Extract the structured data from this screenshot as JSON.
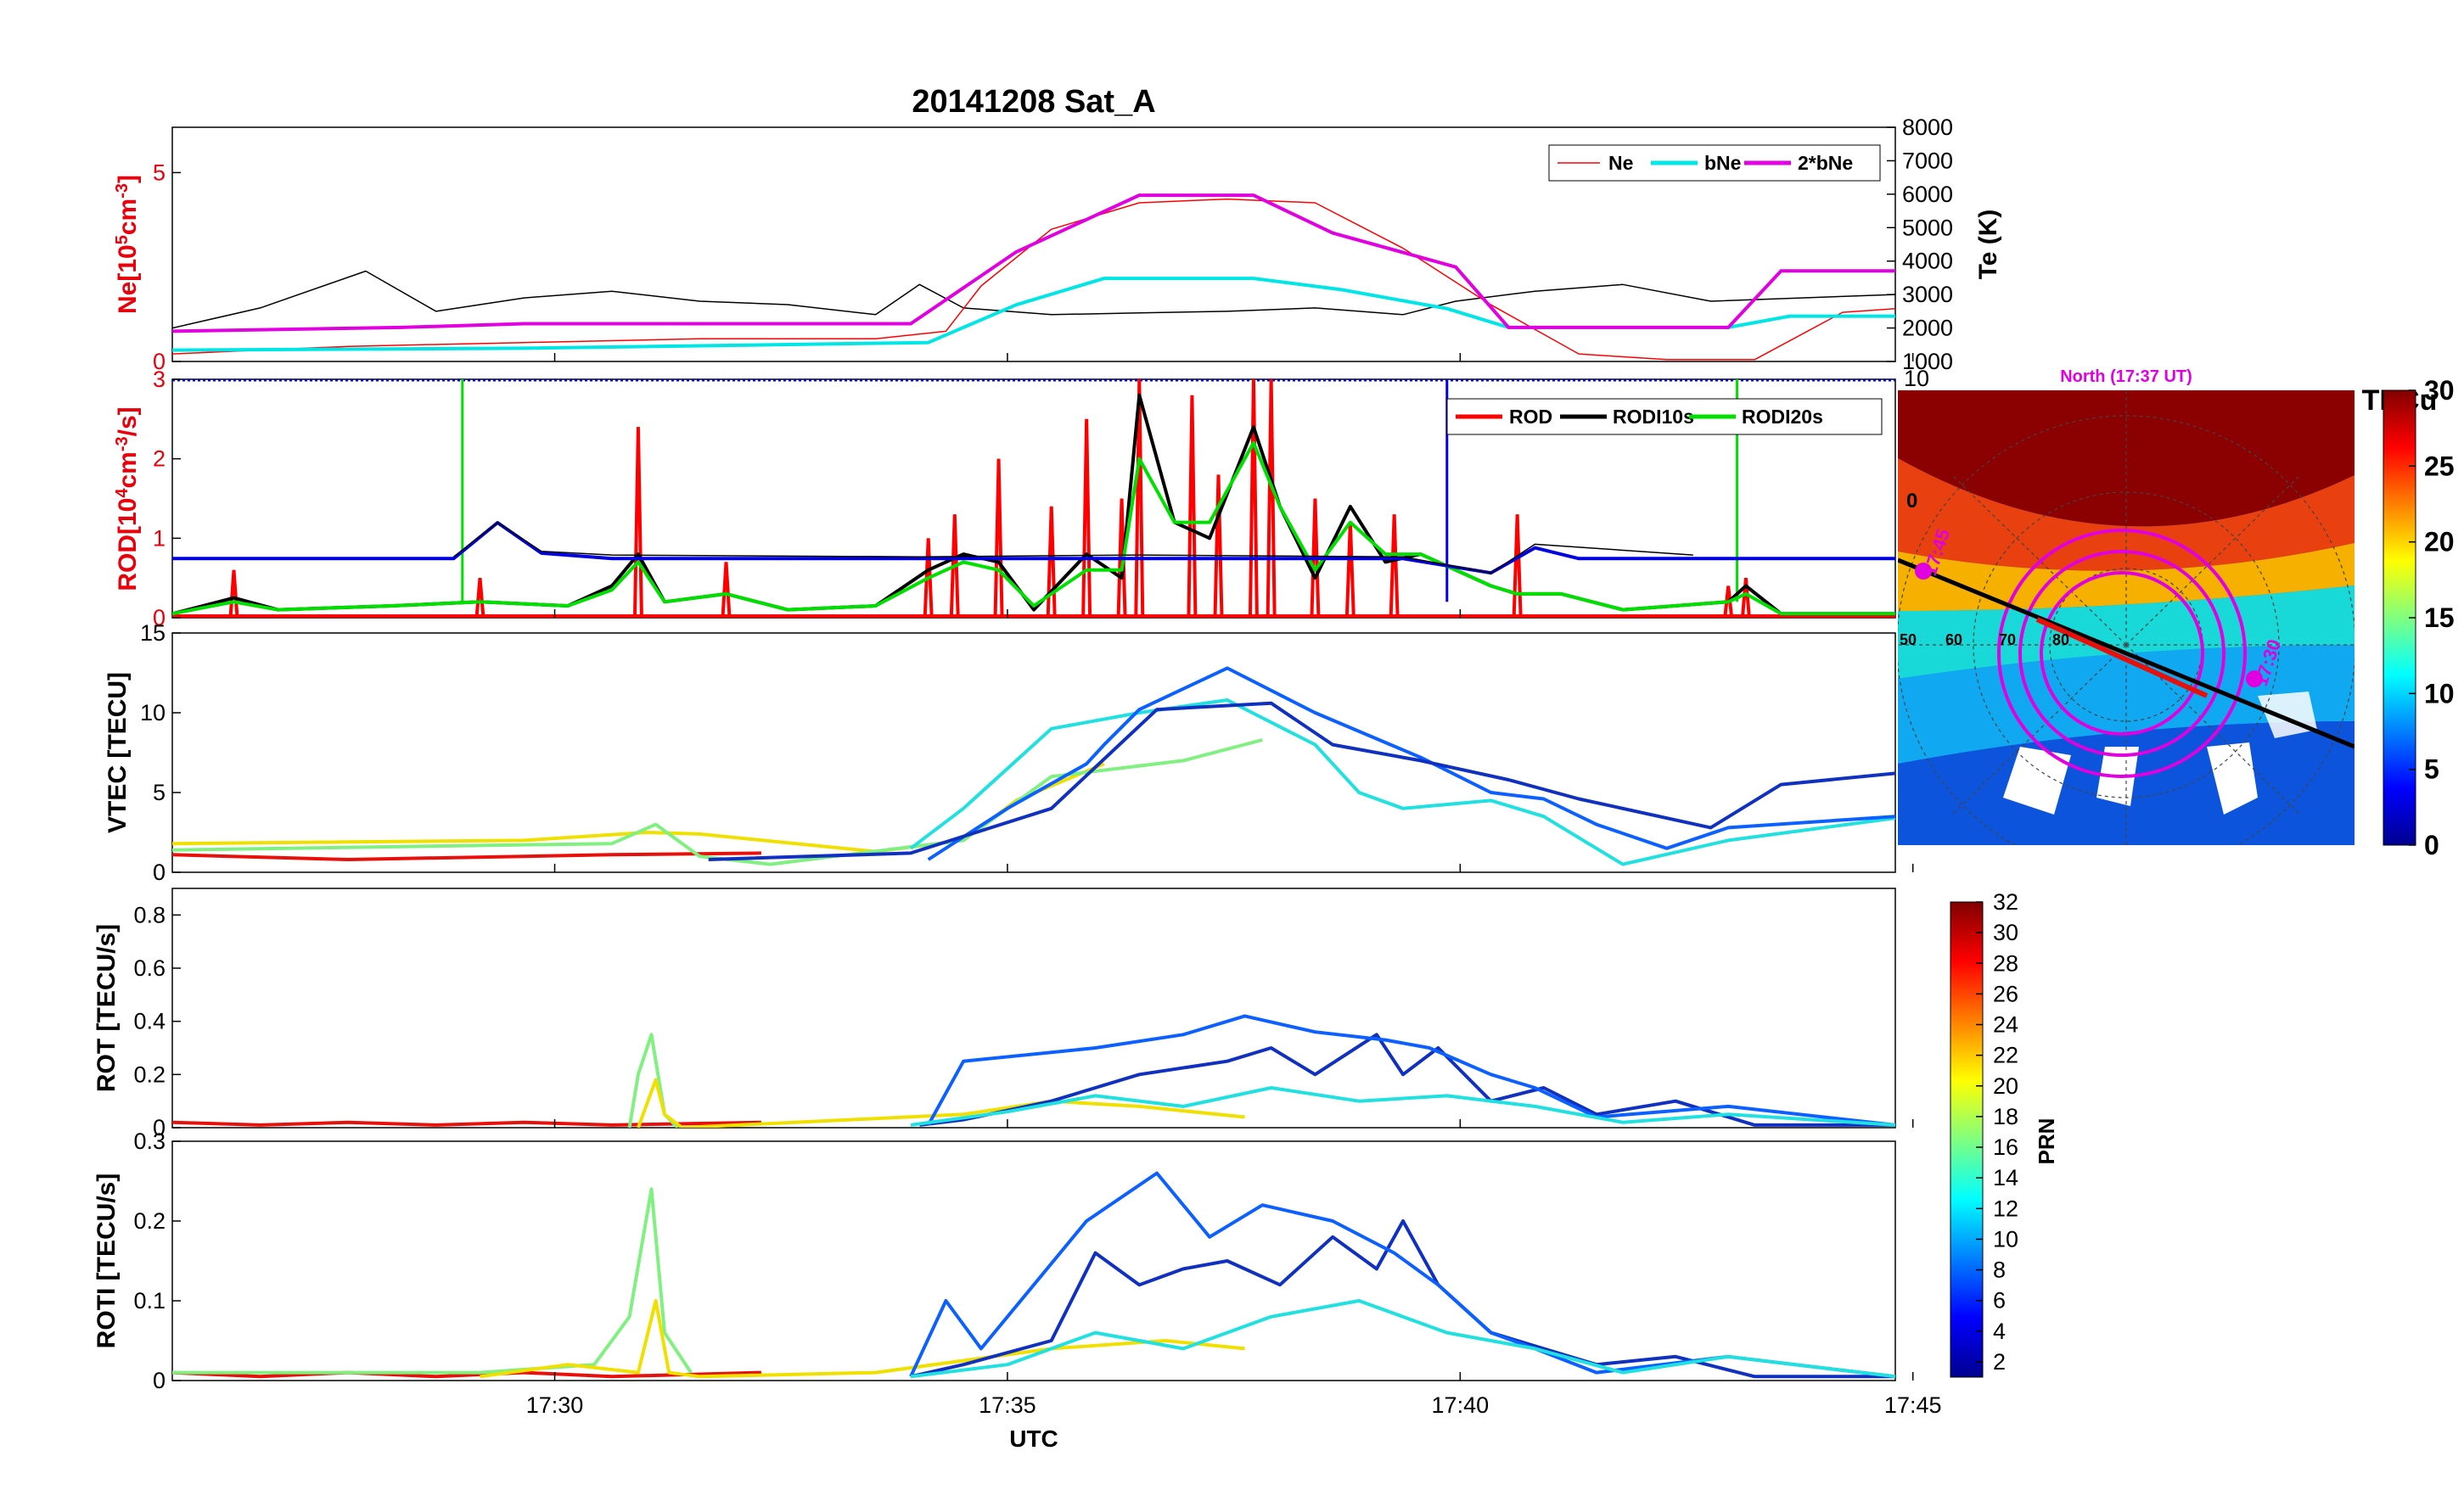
{
  "figure": {
    "title": "20141208  Sat_A",
    "xlabel": "UTC",
    "x_ticks": [
      "17:30",
      "17:35",
      "17:40",
      "17:45"
    ]
  },
  "chart_data": [
    {
      "type": "line",
      "panel": "ne",
      "ylabel_left": "Ne[10^5cm^-3]",
      "ylabel_left_parts": [
        "Ne[10",
        "5",
        "cm",
        "-3",
        "]"
      ],
      "yticks_left": [
        "0",
        "5"
      ],
      "ylim_left": [
        0,
        6.2
      ],
      "ylabel_right": "Te (K)",
      "yticks_right": [
        "1000",
        "2000",
        "3000",
        "4000",
        "5000",
        "6000",
        "7000",
        "8000"
      ],
      "ylim_right": [
        1000,
        8000
      ],
      "x_range_minutes": [
        0,
        19.6
      ],
      "legend": [
        "Ne",
        "bNe",
        "2*bNe"
      ],
      "series": [
        {
          "name": "Te",
          "axis": "right",
          "color": "#000000",
          "x": [
            0,
            1,
            2.2,
            3,
            4,
            5,
            6,
            7,
            8,
            8.5,
            9,
            10,
            11,
            12,
            13,
            14,
            14.6,
            15.5,
            16.5,
            17.5,
            19.6
          ],
          "y": [
            2000,
            2600,
            3700,
            2500,
            2900,
            3100,
            2800,
            2700,
            2400,
            3300,
            2600,
            2400,
            2450,
            2500,
            2600,
            2400,
            2800,
            3100,
            3300,
            2800,
            3000
          ]
        },
        {
          "name": "Ne",
          "axis": "left",
          "color": "#ff0000",
          "x": [
            0,
            2,
            4,
            6,
            8,
            8.8,
            9.2,
            10,
            11,
            12,
            13,
            14,
            15,
            16,
            17,
            18,
            19,
            19.6
          ],
          "y": [
            0.2,
            0.4,
            0.5,
            0.6,
            0.6,
            0.8,
            2.0,
            3.5,
            4.2,
            4.3,
            4.2,
            3.0,
            1.5,
            0.2,
            0.05,
            0.05,
            1.3,
            1.4
          ]
        },
        {
          "name": "bNe",
          "axis": "left",
          "color": "#00e5e5",
          "x": [
            0,
            4,
            8.6,
            9.6,
            10.6,
            12.3,
            13.3,
            14.5,
            15.2,
            17.7,
            18.4,
            19.6
          ],
          "y": [
            0.3,
            0.35,
            0.5,
            1.5,
            2.2,
            2.2,
            1.9,
            1.4,
            0.9,
            0.9,
            1.2,
            1.2
          ]
        },
        {
          "name": "2*bNe",
          "axis": "left",
          "color": "#e000e0",
          "x": [
            0,
            2.6,
            4,
            8.4,
            9.6,
            11,
            12.3,
            13.2,
            14.6,
            15.2,
            17.7,
            18.3,
            19.6
          ],
          "y": [
            0.8,
            0.9,
            1.0,
            1.0,
            2.9,
            4.4,
            4.4,
            3.4,
            2.5,
            0.9,
            0.9,
            2.4,
            2.4
          ]
        }
      ]
    },
    {
      "type": "line",
      "panel": "rod",
      "ylabel": "ROD[10^4cm^-3/s]",
      "ylabel_parts": [
        "ROD[10",
        "4",
        "cm",
        "-3",
        "/s]"
      ],
      "yticks_left": [
        "0",
        "1",
        "2",
        "3"
      ],
      "ylim": [
        0,
        3
      ],
      "right_tick_labels": [
        "10",
        "0"
      ],
      "right_scale": [
        -3.3,
        10
      ],
      "legend": [
        "ROD",
        "RODI10s",
        "RODI20s"
      ],
      "series": [
        {
          "name": "ROD",
          "color": "#ff0000",
          "spikes_x": [
            0.7,
            3.5,
            5.3,
            6.3,
            8.6,
            8.9,
            9.4,
            10.0,
            10.4,
            10.8,
            11.0,
            11.6,
            11.9,
            12.3,
            12.5,
            13.0,
            13.4,
            13.9,
            15.3,
            17.7,
            17.9
          ],
          "spikes_y": [
            0.6,
            0.5,
            2.4,
            0.7,
            1.0,
            1.3,
            2.0,
            1.4,
            2.5,
            1.5,
            3.0,
            2.8,
            1.8,
            3.0,
            3.0,
            1.5,
            1.2,
            1.3,
            1.3,
            0.4,
            0.5
          ]
        },
        {
          "name": "RODI10s",
          "color": "#000000",
          "x": [
            0,
            0.7,
            1.2,
            2.5,
            3.5,
            4.5,
            5.0,
            5.3,
            5.6,
            6.3,
            7,
            8,
            8.6,
            9.0,
            9.4,
            9.8,
            10.4,
            10.8,
            11.0,
            11.4,
            11.8,
            12.3,
            12.6,
            13.0,
            13.4,
            13.8,
            14.2,
            15,
            15.3,
            15.8,
            16.5,
            17.7,
            17.9,
            18.3,
            19.6
          ],
          "y": [
            0.05,
            0.25,
            0.1,
            0.15,
            0.2,
            0.15,
            0.4,
            0.8,
            0.2,
            0.3,
            0.1,
            0.15,
            0.6,
            0.8,
            0.7,
            0.1,
            0.8,
            0.5,
            2.8,
            1.2,
            1.0,
            2.4,
            1.4,
            0.5,
            1.4,
            0.7,
            0.8,
            0.4,
            0.3,
            0.3,
            0.1,
            0.2,
            0.4,
            0.05,
            0.05
          ]
        },
        {
          "name": "RODI20s",
          "color": "#00e000",
          "x": [
            0,
            0.7,
            1.2,
            2.5,
            3.5,
            4.5,
            5.0,
            5.3,
            5.6,
            6.3,
            7,
            8,
            8.6,
            9.0,
            9.4,
            9.8,
            10.4,
            10.8,
            11.0,
            11.4,
            11.8,
            12.3,
            12.6,
            13.0,
            13.4,
            13.8,
            14.2,
            15,
            15.3,
            15.8,
            16.5,
            17.7,
            17.9,
            18.3,
            19.6
          ],
          "y": [
            0.05,
            0.2,
            0.1,
            0.15,
            0.2,
            0.15,
            0.35,
            0.7,
            0.2,
            0.3,
            0.1,
            0.15,
            0.5,
            0.7,
            0.6,
            0.15,
            0.6,
            0.6,
            2.0,
            1.2,
            1.2,
            2.2,
            1.4,
            0.6,
            1.2,
            0.8,
            0.8,
            0.4,
            0.3,
            0.3,
            0.1,
            0.2,
            0.3,
            0.05,
            0.05
          ]
        },
        {
          "name": "right-axis trace",
          "color": "#0000e0",
          "x": [
            0,
            3.2,
            3.7,
            4.2,
            5.0,
            8.5,
            11,
            14,
            15,
            15.5,
            16,
            19.6
          ],
          "y": [
            0,
            0,
            2.0,
            0.3,
            0,
            0,
            0,
            0,
            -0.8,
            0.6,
            0,
            0
          ]
        },
        {
          "name": "right-axis noise",
          "color": "#000000",
          "x": [
            3.2,
            3.7,
            4.2,
            5,
            8.5,
            11,
            14,
            15,
            15.5,
            17.3
          ],
          "y": [
            0.1,
            2.0,
            0.4,
            0.2,
            0.1,
            0.2,
            0.1,
            -0.8,
            0.8,
            0.2
          ]
        }
      ]
    },
    {
      "type": "line",
      "panel": "vtec",
      "ylabel": "VTEC [TECU]",
      "yticks_left": [
        "0",
        "5",
        "10",
        "15"
      ],
      "ylim": [
        0,
        15
      ],
      "series": [
        {
          "name": "PRN red",
          "color": "#e8100b",
          "x": [
            0,
            2,
            4,
            5,
            6.7
          ],
          "y": [
            1.1,
            0.8,
            1.0,
            1.1,
            1.2
          ]
        },
        {
          "name": "PRN yellow",
          "color": "#f0e000",
          "x": [
            0,
            2,
            4,
            5.4,
            6,
            8,
            9,
            9.6,
            10.6
          ],
          "y": [
            1.8,
            1.9,
            2.0,
            2.5,
            2.4,
            1.3,
            2.0,
            4.5,
            6.8
          ]
        },
        {
          "name": "PRN green",
          "color": "#80f080",
          "x": [
            0,
            5,
            5.5,
            6,
            6.8,
            9,
            10,
            11.5,
            12.4
          ],
          "y": [
            1.4,
            1.8,
            3.0,
            1.0,
            0.5,
            2.0,
            6.0,
            7.0,
            8.3
          ]
        },
        {
          "name": "PRN cyan",
          "color": "#20e0e0",
          "x": [
            8.4,
            9,
            10,
            11,
            12,
            13,
            13.5,
            14,
            15,
            15.6,
            16.5,
            17.7,
            19.6
          ],
          "y": [
            1.5,
            4.0,
            9.0,
            10.0,
            10.8,
            8.0,
            5.0,
            4.0,
            4.5,
            3.5,
            0.5,
            2.0,
            3.4
          ]
        },
        {
          "name": "PRN blue",
          "color": "#0b60ff",
          "x": [
            8.6,
            9.5,
            10.4,
            10.6,
            11,
            12,
            13,
            14.2,
            15,
            15.6,
            16.2,
            17,
            17.7,
            19.6
          ],
          "y": [
            0.8,
            4.0,
            6.8,
            8.0,
            10.2,
            12.8,
            10.0,
            7.2,
            5.0,
            4.6,
            3.0,
            1.5,
            2.8,
            3.5
          ]
        },
        {
          "name": "PRN navy",
          "color": "#1030c0",
          "x": [
            6.1,
            8.4,
            10,
            11.2,
            12.5,
            13.2,
            14.2,
            15.2,
            16,
            17.5,
            18.3,
            19.6
          ],
          "y": [
            0.8,
            1.2,
            4.0,
            10.2,
            10.6,
            8.0,
            7.0,
            5.8,
            4.6,
            2.8,
            5.5,
            6.2
          ]
        }
      ]
    },
    {
      "type": "line",
      "panel": "rot",
      "ylabel": "ROT [TECU/s]",
      "yticks_left": [
        "0",
        "0.2",
        "0.4",
        "0.6",
        "0.8"
      ],
      "ylim": [
        0,
        0.9
      ],
      "series": [
        {
          "name": "PRN red",
          "color": "#e8100b",
          "x": [
            0,
            1,
            2,
            3,
            4,
            5,
            6.7
          ],
          "y": [
            0.02,
            0.01,
            0.02,
            0.01,
            0.02,
            0.01,
            0.02
          ]
        },
        {
          "name": "PRN green",
          "color": "#80f080",
          "x": [
            5.2,
            5.3,
            5.45,
            5.6,
            5.75
          ],
          "y": [
            0.0,
            0.2,
            0.35,
            0.05,
            0.0
          ]
        },
        {
          "name": "PRN yellow",
          "color": "#f0e000",
          "x": [
            5.3,
            5.5,
            5.6,
            5.8,
            9,
            10,
            11,
            12.2
          ],
          "y": [
            0.0,
            0.18,
            0.05,
            0.0,
            0.05,
            0.1,
            0.08,
            0.04
          ]
        },
        {
          "name": "PRN navy",
          "color": "#1030c0",
          "x": [
            8.5,
            9,
            10,
            11,
            12,
            12.5,
            13,
            13.7,
            14,
            14.4,
            15,
            15.6,
            16.2,
            17.1,
            18,
            19.6
          ],
          "y": [
            0.01,
            0.03,
            0.1,
            0.2,
            0.25,
            0.3,
            0.2,
            0.35,
            0.2,
            0.3,
            0.1,
            0.15,
            0.05,
            0.1,
            0.01,
            0.01
          ]
        },
        {
          "name": "PRN blue",
          "color": "#0b60ff",
          "x": [
            8.6,
            9,
            10.5,
            11.5,
            12.2,
            13,
            13.8,
            14.3,
            15,
            15.5,
            16.2,
            17.7,
            19.6
          ],
          "y": [
            0.01,
            0.25,
            0.3,
            0.35,
            0.42,
            0.36,
            0.33,
            0.3,
            0.2,
            0.15,
            0.04,
            0.08,
            0.01
          ]
        },
        {
          "name": "PRN cyan",
          "color": "#20e0e0",
          "x": [
            8.4,
            9.5,
            10.5,
            11.5,
            12.5,
            13.5,
            14.5,
            15.5,
            16.5,
            17.7,
            19.6
          ],
          "y": [
            0.01,
            0.06,
            0.12,
            0.08,
            0.15,
            0.1,
            0.12,
            0.08,
            0.02,
            0.05,
            0.01
          ]
        }
      ]
    },
    {
      "type": "line",
      "panel": "roti",
      "ylabel": "ROTI [TECU/s]",
      "yticks_left": [
        "0",
        "0.1",
        "0.2",
        "0.3"
      ],
      "ylim": [
        0,
        0.3
      ],
      "series": [
        {
          "name": "PRN red",
          "color": "#e8100b",
          "x": [
            0,
            1,
            2,
            3,
            4,
            5,
            6.7
          ],
          "y": [
            0.01,
            0.005,
            0.01,
            0.005,
            0.01,
            0.005,
            0.01
          ]
        },
        {
          "name": "PRN green",
          "color": "#80f080",
          "x": [
            0,
            3.5,
            4.8,
            5.2,
            5.45,
            5.6,
            5.9
          ],
          "y": [
            0.01,
            0.01,
            0.02,
            0.08,
            0.24,
            0.06,
            0.01
          ]
        },
        {
          "name": "PRN yellow",
          "color": "#f0e000",
          "x": [
            3.5,
            4.5,
            5.3,
            5.5,
            5.65,
            6,
            8,
            10,
            11.3,
            12.2
          ],
          "y": [
            0.005,
            0.02,
            0.01,
            0.1,
            0.01,
            0.005,
            0.01,
            0.04,
            0.05,
            0.04
          ]
        },
        {
          "name": "PRN navy",
          "color": "#1030c0",
          "x": [
            8.4,
            9,
            10,
            10.5,
            11,
            11.5,
            12,
            12.6,
            13.2,
            13.7,
            14,
            14.4,
            15,
            15.6,
            16.2,
            17.1,
            18,
            19.6
          ],
          "y": [
            0.005,
            0.02,
            0.05,
            0.16,
            0.12,
            0.14,
            0.15,
            0.12,
            0.18,
            0.14,
            0.2,
            0.12,
            0.06,
            0.04,
            0.02,
            0.03,
            0.005,
            0.005
          ]
        },
        {
          "name": "PRN blue",
          "color": "#0b60ff",
          "x": [
            8.4,
            8.8,
            9.2,
            10.4,
            11.2,
            11.8,
            12.4,
            13.2,
            13.9,
            14.4,
            15,
            15.5,
            16.2,
            17.7,
            19.6
          ],
          "y": [
            0.005,
            0.1,
            0.04,
            0.2,
            0.26,
            0.18,
            0.22,
            0.2,
            0.16,
            0.12,
            0.06,
            0.04,
            0.01,
            0.03,
            0.005
          ]
        },
        {
          "name": "PRN cyan",
          "color": "#20e0e0",
          "x": [
            8.4,
            9.5,
            10.5,
            11.5,
            12.5,
            13.5,
            14.5,
            15.5,
            16.5,
            17.7,
            19.6
          ],
          "y": [
            0.005,
            0.02,
            0.06,
            0.04,
            0.08,
            0.1,
            0.06,
            0.04,
            0.01,
            0.03,
            0.005
          ]
        }
      ]
    }
  ],
  "polar_map": {
    "title": "North (17:37 UT)",
    "colorbar_label": "TECu",
    "colorbar_ticks": [
      "0",
      "5",
      "10",
      "15",
      "20",
      "25",
      "30"
    ],
    "lat_labels": [
      "50",
      "60",
      "70",
      "80"
    ],
    "lon_label": "0",
    "time_labels": [
      "17:45",
      "17:30"
    ]
  },
  "prn_colorbar": {
    "label": "PRN",
    "ticks": [
      "2",
      "4",
      "6",
      "8",
      "10",
      "12",
      "14",
      "16",
      "18",
      "20",
      "22",
      "24",
      "26",
      "28",
      "30",
      "32"
    ]
  }
}
